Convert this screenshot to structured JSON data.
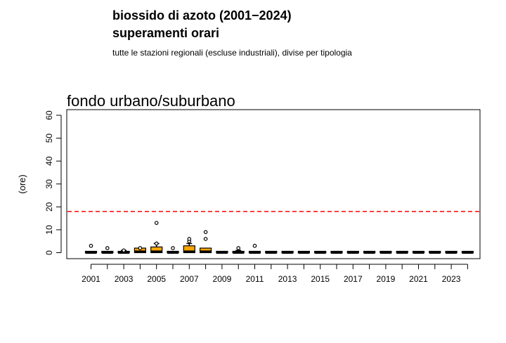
{
  "header": {
    "title": "biossido di azoto (2001−2024)",
    "subtitle": "superamenti orari",
    "note": "tutte le stazioni regionali (escluse industriali), divise per tipologia"
  },
  "colors": {
    "box_fill": "#FFA500",
    "threshold_line": "#FF0000",
    "axis": "#000000"
  },
  "chart_data": {
    "type": "boxplot",
    "title": "fondo urbano/suburbano",
    "ylabel": "(ore)",
    "ylim": [
      0,
      60
    ],
    "yticks": [
      0,
      10,
      20,
      30,
      40,
      50,
      60
    ],
    "threshold": {
      "value": 18,
      "style": "dashed",
      "color": "#FF0000"
    },
    "categories": [
      "2001",
      "2002",
      "2003",
      "2004",
      "2005",
      "2006",
      "2007",
      "2008",
      "2009",
      "2010",
      "2011",
      "2012",
      "2013",
      "2014",
      "2015",
      "2016",
      "2017",
      "2018",
      "2019",
      "2020",
      "2021",
      "2022",
      "2023",
      "2024"
    ],
    "xtick_labels": [
      "2001",
      "",
      "2003",
      "",
      "2005",
      "",
      "2007",
      "",
      "2009",
      "",
      "2011",
      "",
      "2013",
      "",
      "2015",
      "",
      "2017",
      "",
      "2019",
      "",
      "2021",
      "",
      "2023",
      ""
    ],
    "boxes": [
      {
        "q1": 0,
        "median": 0,
        "q3": 0,
        "whisker_low": 0,
        "whisker_high": 0,
        "outliers": [
          3
        ]
      },
      {
        "q1": 0,
        "median": 0,
        "q3": 0,
        "whisker_low": 0,
        "whisker_high": 0,
        "outliers": [
          2
        ]
      },
      {
        "q1": 0,
        "median": 0,
        "q3": 0.5,
        "whisker_low": 0,
        "whisker_high": 1,
        "outliers": [
          1
        ]
      },
      {
        "q1": 0,
        "median": 0.5,
        "q3": 2,
        "whisker_low": 0,
        "whisker_high": 2,
        "outliers": [
          2
        ]
      },
      {
        "q1": 0,
        "median": 0.5,
        "q3": 2.5,
        "whisker_low": 0,
        "whisker_high": 4,
        "outliers": [
          4,
          13
        ]
      },
      {
        "q1": 0,
        "median": 0,
        "q3": 0,
        "whisker_low": 0,
        "whisker_high": 0,
        "outliers": [
          2
        ]
      },
      {
        "q1": 0,
        "median": 0.5,
        "q3": 3,
        "whisker_low": 0,
        "whisker_high": 4,
        "outliers": [
          5,
          6
        ]
      },
      {
        "q1": 0,
        "median": 0.5,
        "q3": 2,
        "whisker_low": 0,
        "whisker_high": 2,
        "outliers": [
          6,
          9
        ]
      },
      {
        "q1": 0,
        "median": 0,
        "q3": 0,
        "whisker_low": 0,
        "whisker_high": 0,
        "outliers": []
      },
      {
        "q1": 0,
        "median": 0,
        "q3": 0.5,
        "whisker_low": 0,
        "whisker_high": 1,
        "outliers": [
          2
        ]
      },
      {
        "q1": 0,
        "median": 0,
        "q3": 0,
        "whisker_low": 0,
        "whisker_high": 0,
        "outliers": [
          3
        ]
      },
      {
        "q1": 0,
        "median": 0,
        "q3": 0,
        "whisker_low": 0,
        "whisker_high": 0,
        "outliers": []
      },
      {
        "q1": 0,
        "median": 0,
        "q3": 0,
        "whisker_low": 0,
        "whisker_high": 0,
        "outliers": []
      },
      {
        "q1": 0,
        "median": 0,
        "q3": 0,
        "whisker_low": 0,
        "whisker_high": 0,
        "outliers": []
      },
      {
        "q1": 0,
        "median": 0,
        "q3": 0,
        "whisker_low": 0,
        "whisker_high": 0,
        "outliers": []
      },
      {
        "q1": 0,
        "median": 0,
        "q3": 0,
        "whisker_low": 0,
        "whisker_high": 0,
        "outliers": []
      },
      {
        "q1": 0,
        "median": 0,
        "q3": 0,
        "whisker_low": 0,
        "whisker_high": 0,
        "outliers": []
      },
      {
        "q1": 0,
        "median": 0,
        "q3": 0,
        "whisker_low": 0,
        "whisker_high": 0,
        "outliers": []
      },
      {
        "q1": 0,
        "median": 0,
        "q3": 0,
        "whisker_low": 0,
        "whisker_high": 0,
        "outliers": []
      },
      {
        "q1": 0,
        "median": 0,
        "q3": 0,
        "whisker_low": 0,
        "whisker_high": 0,
        "outliers": []
      },
      {
        "q1": 0,
        "median": 0,
        "q3": 0,
        "whisker_low": 0,
        "whisker_high": 0,
        "outliers": []
      },
      {
        "q1": 0,
        "median": 0,
        "q3": 0,
        "whisker_low": 0,
        "whisker_high": 0,
        "outliers": []
      },
      {
        "q1": 0,
        "median": 0,
        "q3": 0,
        "whisker_low": 0,
        "whisker_high": 0,
        "outliers": []
      },
      {
        "q1": 0,
        "median": 0,
        "q3": 0,
        "whisker_low": 0,
        "whisker_high": 0,
        "outliers": []
      }
    ]
  }
}
